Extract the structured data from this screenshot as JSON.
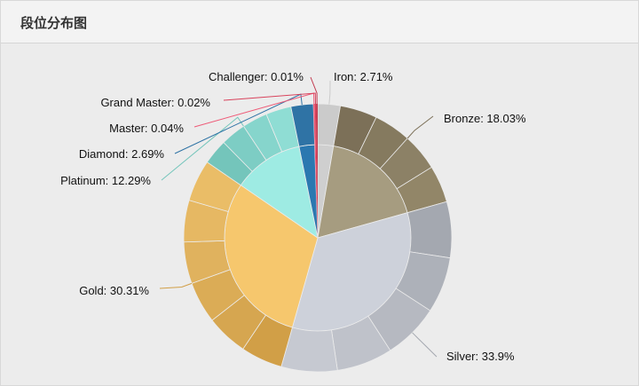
{
  "panel": {
    "title": "段位分布图"
  },
  "chart_data": {
    "type": "pie",
    "title": "段位分布图",
    "label_format": "{name}: {value}%",
    "slices": [
      {
        "name": "Iron",
        "value": 2.71,
        "color": "#cfcfcf",
        "outer_colors": [
          "#cbcbcb"
        ]
      },
      {
        "name": "Bronze",
        "value": 18.03,
        "color": "#a69c80",
        "outer_colors": [
          "#7c7058",
          "#857a5f",
          "#8c8166",
          "#928668"
        ]
      },
      {
        "name": "Silver",
        "value": 33.9,
        "color": "#cdd1da",
        "outer_colors": [
          "#a4a8b0",
          "#adb1b9",
          "#b6b9c1",
          "#bfc2ca",
          "#c6c9d1"
        ]
      },
      {
        "name": "Gold",
        "value": 30.31,
        "color": "#f6c76d",
        "outer_colors": [
          "#d19f47",
          "#d6a650",
          "#dbac56",
          "#e0b25e",
          "#e6b863",
          "#eabd67"
        ]
      },
      {
        "name": "Platinum",
        "value": 12.29,
        "color": "#9eebe3",
        "outer_colors": [
          "#74c5bb",
          "#7dcdc4",
          "#86d5cc",
          "#8fddd4"
        ]
      },
      {
        "name": "Diamond",
        "value": 2.69,
        "color": "#2b78b0",
        "outer_colors": [
          "#2f73a5"
        ]
      },
      {
        "name": "Master",
        "value": 0.04,
        "color": "#ee5a77",
        "outer_colors": [
          "#ee5a77"
        ]
      },
      {
        "name": "Grand Master",
        "value": 0.02,
        "color": "#d8405a",
        "outer_colors": [
          "#d8405a"
        ]
      },
      {
        "name": "Challenger",
        "value": 0.01,
        "color": "#c23a4f",
        "outer_colors": [
          "#c23a4f"
        ]
      }
    ]
  }
}
